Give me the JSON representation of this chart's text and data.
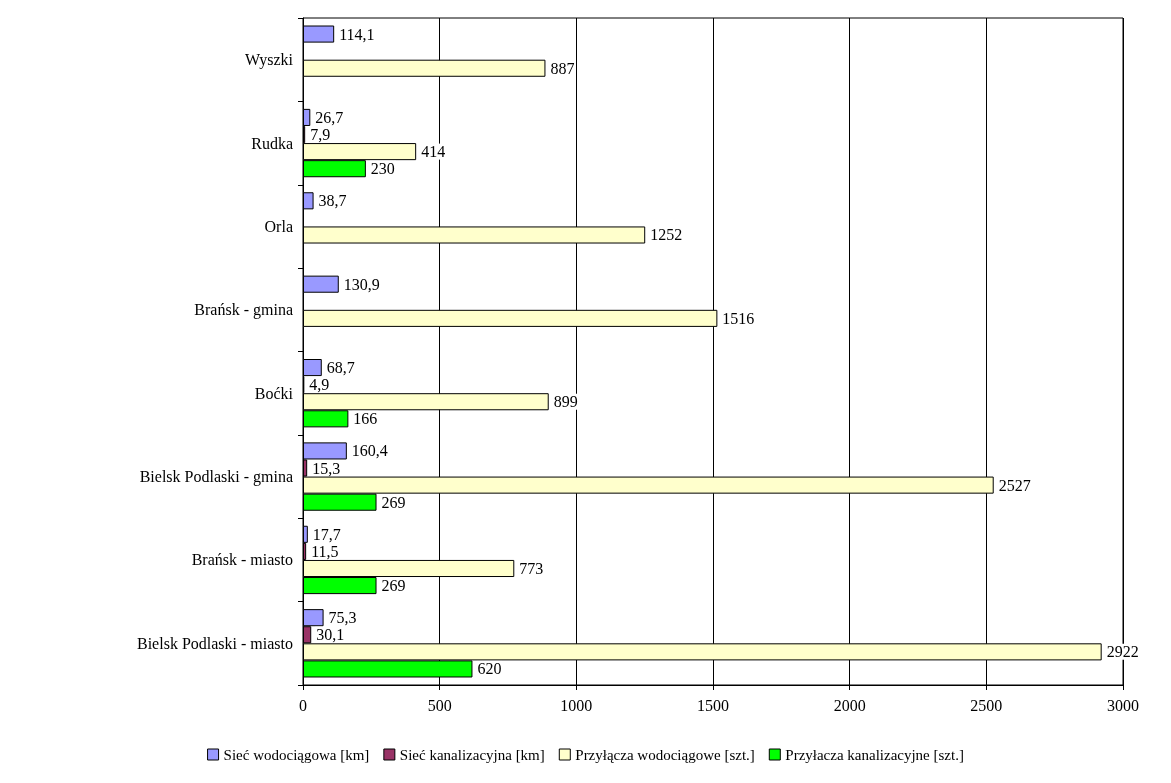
{
  "chart_data": {
    "type": "bar",
    "orientation": "horizontal",
    "categories": [
      "Wyszki",
      "Rudka",
      "Orla",
      "Brańsk - gmina",
      "Boćki",
      "Bielsk Podlaski - gmina",
      "Brańsk - miasto",
      "Bielsk Podlaski - miasto"
    ],
    "series": [
      {
        "name": "Sieć wodociągowa [km]",
        "color": "#9999ff",
        "values": [
          114.1,
          26.7,
          38.7,
          130.9,
          68.7,
          160.4,
          17.7,
          75.3
        ],
        "value_labels": [
          "114,1",
          "26,7",
          "38,7",
          "130,9",
          "68,7",
          "160,4",
          "17,7",
          "75,3"
        ]
      },
      {
        "name": "Sieć kanalizacyjna [km]",
        "color": "#993366",
        "values": [
          null,
          7.9,
          null,
          null,
          4.9,
          15.3,
          11.5,
          30.1
        ],
        "value_labels": [
          null,
          "7,9",
          null,
          null,
          "4,9",
          "15,3",
          "11,5",
          "30,1"
        ]
      },
      {
        "name": "Przyłącza wodociągowe [szt.]",
        "color": "#ffffcc",
        "values": [
          887,
          414,
          1252,
          1516,
          899,
          2527,
          773,
          2922
        ],
        "value_labels": [
          "887",
          "414",
          "1252",
          "1516",
          "899",
          "2527",
          "773",
          "2922"
        ]
      },
      {
        "name": "Przyłacza kanalizacyjne [szt.]",
        "color": "#00ff00",
        "values": [
          null,
          230,
          null,
          null,
          166,
          269,
          269,
          620
        ],
        "value_labels": [
          null,
          "230",
          null,
          null,
          "166",
          "269",
          "269",
          "620"
        ]
      }
    ],
    "xlim": [
      0,
      3000
    ],
    "xticks": [
      0,
      500,
      1000,
      1500,
      2000,
      2500,
      3000
    ],
    "grid": "x",
    "legend": "bottom"
  }
}
